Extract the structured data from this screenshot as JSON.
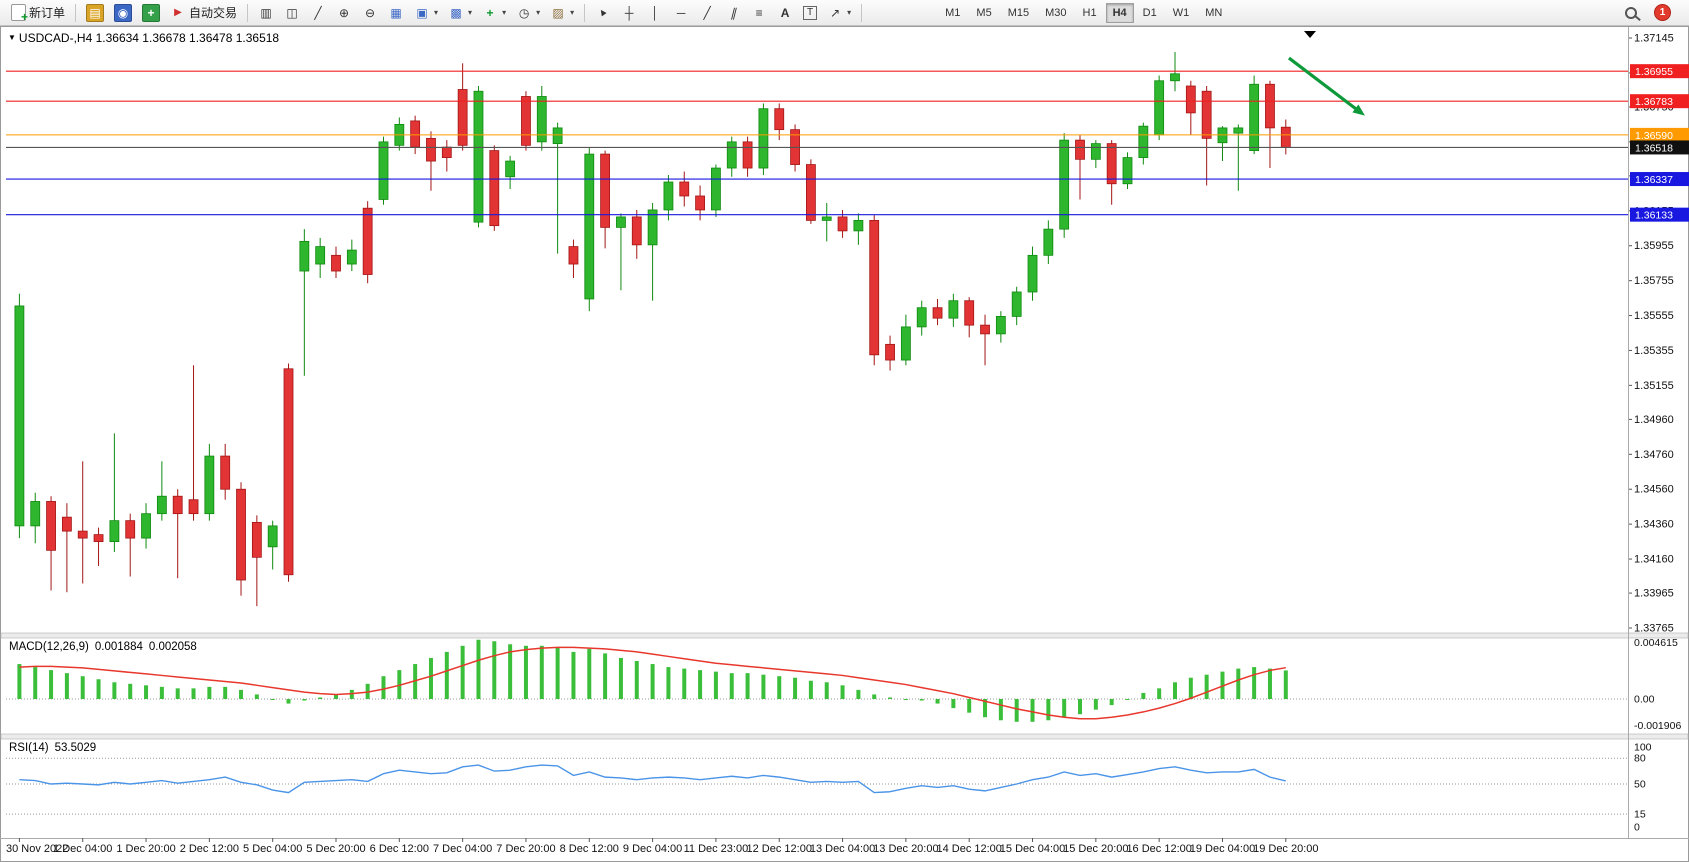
{
  "window": {
    "title_full": "USDCAD-,H4 1.36634 1.36678 1.36478 1.36518"
  },
  "colors": {
    "bull": "#2eb62e",
    "bull_dark": "#0f8a0f",
    "bear": "#e23434",
    "bear_dark": "#a31515",
    "macd_bar": "#3bbf3b",
    "macd_signal": "#e8372c",
    "rsi_line": "#4a94e8",
    "line_red": "#f02020",
    "line_orange": "#ff9b00",
    "line_blue": "#1818e0",
    "current_line": "#555555",
    "current_tag_bg": "#101010",
    "arrow_green": "#0e9a3a"
  },
  "toolbar": {
    "new_order_label": "新订单",
    "auto_trading_label": "自动交易",
    "notification_count": "1",
    "timeframes": [
      "M1",
      "M5",
      "M15",
      "M30",
      "H1",
      "H4",
      "D1",
      "W1",
      "MN"
    ],
    "active_timeframe": "H4",
    "quick_icons": [
      {
        "name": "profiles-icon",
        "glyph": "▤",
        "fg": "#ffffff",
        "bg": "#d9a427"
      },
      {
        "name": "market-watch-icon",
        "glyph": "◉",
        "fg": "#ffffff",
        "bg": "#3b67c5"
      },
      {
        "name": "navigator-icon",
        "glyph": "+",
        "fg": "#ffffff",
        "bg": "#35a04a",
        "bold": true
      }
    ],
    "chart_icons": [
      {
        "name": "bar-chart-icon",
        "glyph": "▥",
        "fg": "#333333"
      },
      {
        "name": "candlestick-icon",
        "glyph": "◫",
        "fg": "#333333"
      },
      {
        "name": "line-chart-icon",
        "glyph": "╱",
        "fg": "#333333"
      },
      {
        "name": "zoom-in-icon",
        "glyph": "⊕",
        "fg": "#333333"
      },
      {
        "name": "zoom-out-icon",
        "glyph": "⊖",
        "fg": "#333333"
      },
      {
        "name": "tile-windows-icon",
        "glyph": "▦",
        "fg": "#3b67c5"
      },
      {
        "name": "arrange-windows-icon",
        "glyph": "▣",
        "fg": "#3b67c5",
        "dropdown": true
      },
      {
        "name": "cascade-windows-icon",
        "glyph": "▩",
        "fg": "#3b67c5",
        "dropdown": true
      },
      {
        "name": "indicators-icon",
        "glyph": "+",
        "fg": "#0c9b2f",
        "bold": true,
        "dropdown": true
      },
      {
        "name": "periods-icon",
        "glyph": "◷",
        "fg": "#333333",
        "dropdown": true
      },
      {
        "name": "templates-icon",
        "glyph": "▨",
        "fg": "#8a6d3b",
        "dropdown": true
      }
    ],
    "draw_icons": [
      {
        "name": "cursor-icon",
        "glyph": "▲",
        "fg": "#333333",
        "cls": "rotc"
      },
      {
        "name": "crosshair-icon",
        "glyph": "┼",
        "fg": "#333333"
      },
      {
        "name": "vertical-line-icon",
        "glyph": "│",
        "fg": "#333333"
      },
      {
        "name": "horizontal-line-icon",
        "glyph": "─",
        "fg": "#333333"
      },
      {
        "name": "trendline-icon",
        "glyph": "╱",
        "fg": "#333333"
      },
      {
        "name": "channel-icon",
        "glyph": "∥",
        "fg": "#333333",
        "cls": "it"
      },
      {
        "name": "fibonacci-icon",
        "glyph": "≡",
        "fg": "#333333"
      },
      {
        "name": "text-icon",
        "glyph": "A",
        "fg": "#333333",
        "bold": true
      },
      {
        "name": "text-label-icon",
        "glyph": "T",
        "fg": "#333333",
        "cls": "boxT"
      },
      {
        "name": "arrows-icon",
        "glyph": "↗",
        "fg": "#333333",
        "dropdown": true
      }
    ]
  },
  "chart_data": [
    {
      "type": "candlestick",
      "symbol": "USDCAD",
      "period": "H4",
      "current_ohlc": {
        "open": 1.36634,
        "high": 1.36678,
        "low": 1.36478,
        "close": 1.36518
      },
      "y_range": {
        "max": 1.37145,
        "min": 1.33765
      },
      "candles": [
        [
          1.3435,
          1.3568,
          1.3428,
          1.3561
        ],
        [
          1.3435,
          1.3454,
          1.3425,
          1.3449
        ],
        [
          1.3449,
          1.3452,
          1.3398,
          1.3421
        ],
        [
          1.344,
          1.3448,
          1.3397,
          1.3432
        ],
        [
          1.3432,
          1.3472,
          1.3402,
          1.3428
        ],
        [
          1.343,
          1.3434,
          1.3412,
          1.3426
        ],
        [
          1.3426,
          1.3488,
          1.342,
          1.3438
        ],
        [
          1.3438,
          1.3442,
          1.3406,
          1.3428
        ],
        [
          1.3428,
          1.3448,
          1.3422,
          1.3442
        ],
        [
          1.3442,
          1.3472,
          1.3438,
          1.3452
        ],
        [
          1.3452,
          1.3456,
          1.3405,
          1.3442
        ],
        [
          1.345,
          1.3527,
          1.3438,
          1.3442
        ],
        [
          1.3442,
          1.3482,
          1.3438,
          1.3475
        ],
        [
          1.3475,
          1.3482,
          1.345,
          1.3456
        ],
        [
          1.3456,
          1.346,
          1.3395,
          1.3404
        ],
        [
          1.3437,
          1.3441,
          1.3389,
          1.3417
        ],
        [
          1.3423,
          1.3438,
          1.341,
          1.3435
        ],
        [
          1.3525,
          1.3528,
          1.3403,
          1.3407
        ],
        [
          1.3581,
          1.3605,
          1.3521,
          1.3598
        ],
        [
          1.3585,
          1.36,
          1.3577,
          1.3595
        ],
        [
          1.359,
          1.3595,
          1.3577,
          1.3581
        ],
        [
          1.3585,
          1.3599,
          1.3581,
          1.3593
        ],
        [
          1.3617,
          1.3621,
          1.3574,
          1.3579
        ],
        [
          1.3622,
          1.3658,
          1.3619,
          1.3655
        ],
        [
          1.3653,
          1.3669,
          1.365,
          1.3665
        ],
        [
          1.3667,
          1.367,
          1.3648,
          1.3652
        ],
        [
          1.3657,
          1.3661,
          1.3627,
          1.3644
        ],
        [
          1.3652,
          1.3656,
          1.3638,
          1.3646
        ],
        [
          1.3685,
          1.37,
          1.365,
          1.3653
        ],
        [
          1.3609,
          1.3687,
          1.3606,
          1.3684
        ],
        [
          1.365,
          1.3653,
          1.3604,
          1.3607
        ],
        [
          1.3635,
          1.3647,
          1.3628,
          1.3644
        ],
        [
          1.3681,
          1.3684,
          1.365,
          1.3653
        ],
        [
          1.3655,
          1.3687,
          1.365,
          1.3681
        ],
        [
          1.3654,
          1.3666,
          1.3591,
          1.3663
        ],
        [
          1.3595,
          1.3599,
          1.3577,
          1.3585
        ],
        [
          1.3565,
          1.3652,
          1.3558,
          1.3648
        ],
        [
          1.3648,
          1.365,
          1.3594,
          1.3606
        ],
        [
          1.3606,
          1.3614,
          1.357,
          1.3612
        ],
        [
          1.3612,
          1.3616,
          1.3588,
          1.3596
        ],
        [
          1.3596,
          1.362,
          1.3564,
          1.3616
        ],
        [
          1.3616,
          1.3636,
          1.361,
          1.3632
        ],
        [
          1.3632,
          1.3638,
          1.3618,
          1.3624
        ],
        [
          1.3624,
          1.363,
          1.361,
          1.3616
        ],
        [
          1.3616,
          1.3642,
          1.3612,
          1.364
        ],
        [
          1.364,
          1.3658,
          1.3635,
          1.3655
        ],
        [
          1.3655,
          1.3658,
          1.3635,
          1.364
        ],
        [
          1.364,
          1.3677,
          1.3636,
          1.3674
        ],
        [
          1.3674,
          1.3677,
          1.3656,
          1.3662
        ],
        [
          1.3662,
          1.3665,
          1.3638,
          1.3642
        ],
        [
          1.3642,
          1.3645,
          1.3608,
          1.361
        ],
        [
          1.361,
          1.362,
          1.3598,
          1.3612
        ],
        [
          1.3612,
          1.3616,
          1.36,
          1.3604
        ],
        [
          1.3604,
          1.3614,
          1.3596,
          1.361
        ],
        [
          1.361,
          1.3613,
          1.3527,
          1.3533
        ],
        [
          1.3539,
          1.3544,
          1.3524,
          1.353
        ],
        [
          1.353,
          1.3556,
          1.3527,
          1.3549
        ],
        [
          1.3549,
          1.3564,
          1.3544,
          1.356
        ],
        [
          1.356,
          1.3565,
          1.355,
          1.3554
        ],
        [
          1.3554,
          1.3568,
          1.3549,
          1.3564
        ],
        [
          1.3564,
          1.3566,
          1.3543,
          1.355
        ],
        [
          1.355,
          1.3556,
          1.3527,
          1.3545
        ],
        [
          1.3545,
          1.3558,
          1.354,
          1.3555
        ],
        [
          1.3555,
          1.3572,
          1.355,
          1.3569
        ],
        [
          1.3569,
          1.3595,
          1.3564,
          1.359
        ],
        [
          1.359,
          1.361,
          1.3585,
          1.3605
        ],
        [
          1.3605,
          1.366,
          1.36,
          1.3656
        ],
        [
          1.3656,
          1.3659,
          1.3622,
          1.3645
        ],
        [
          1.3645,
          1.3656,
          1.364,
          1.3654
        ],
        [
          1.3654,
          1.3656,
          1.3619,
          1.3631
        ],
        [
          1.3631,
          1.3649,
          1.3628,
          1.3646
        ],
        [
          1.3646,
          1.3666,
          1.3642,
          1.3664
        ],
        [
          1.3659,
          1.3693,
          1.3656,
          1.369
        ],
        [
          1.369,
          1.37065,
          1.3684,
          1.3694
        ],
        [
          1.3687,
          1.369,
          1.3659,
          1.36716
        ],
        [
          1.3684,
          1.3687,
          1.363,
          1.3657
        ],
        [
          1.36545,
          1.3664,
          1.3644,
          1.3663
        ],
        [
          1.366,
          1.3665,
          1.3627,
          1.3663
        ],
        [
          1.365,
          1.3693,
          1.3648,
          1.3688
        ],
        [
          1.3688,
          1.369,
          1.364,
          1.3663
        ],
        [
          1.36634,
          1.36678,
          1.36478,
          1.36518
        ]
      ],
      "y_axis_labels": [
        "1.37145",
        "1.36945",
        "1.36750",
        "1.36550",
        "1.36355",
        "1.36155",
        "1.35955",
        "1.35755",
        "1.35555",
        "1.35355",
        "1.35155",
        "1.34960",
        "1.34760",
        "1.34560",
        "1.34360",
        "1.34160",
        "1.33965",
        "1.33765"
      ],
      "x_axis_labels": [
        "30 Nov 2022",
        "1 Dec 04:00",
        "1 Dec 20:00",
        "2 Dec 12:00",
        "5 Dec 04:00",
        "5 Dec 20:00",
        "6 Dec 12:00",
        "7 Dec 04:00",
        "7 Dec 20:00",
        "8 Dec 12:00",
        "9 Dec 04:00",
        "11 Dec 23:00",
        "12 Dec 12:00",
        "13 Dec 04:00",
        "13 Dec 20:00",
        "14 Dec 12:00",
        "15 Dec 04:00",
        "15 Dec 20:00",
        "16 Dec 12:00",
        "19 Dec 04:00",
        "19 Dec 20:00"
      ],
      "hlines": [
        {
          "value": "1.36955",
          "line_color": "#f02020",
          "bg": "#f02020"
        },
        {
          "value": "1.36783",
          "line_color": "#f02020",
          "bg": "#f02020"
        },
        {
          "value": "1.36590",
          "line_color": "#ff9b00",
          "bg": "#ff9b00"
        },
        {
          "value": "1.36518",
          "line_color": "#555555",
          "bg": "#101010",
          "current": true
        },
        {
          "value": "1.36337",
          "line_color": "#1818e0",
          "bg": "#1818e0"
        },
        {
          "value": "1.36133",
          "line_color": "#1818e0",
          "bg": "#1818e0"
        }
      ],
      "annotation_arrow": {
        "from_bar": 80.2,
        "from_price": 1.3703,
        "to_bar": 85.0,
        "to_price": 1.367,
        "color": "#0e9a3a"
      }
    },
    {
      "type": "macd",
      "label": "MACD(12,26,9)",
      "main_value": "0.001884",
      "signal_value": "0.002058",
      "values_scale": 0.0001,
      "axis_labels": [
        "0.004615",
        "0.00",
        "-0.001906"
      ],
      "histogram": [
        23,
        21,
        19,
        17,
        15,
        13,
        11,
        10,
        9,
        8,
        7,
        7,
        8,
        8,
        6,
        3,
        0,
        -3,
        -1,
        1,
        3,
        6,
        10,
        15,
        19,
        23,
        27,
        31,
        35,
        39,
        38,
        36,
        35,
        35,
        34,
        31,
        33,
        30,
        27,
        25,
        23,
        21,
        20,
        19,
        18,
        17,
        17,
        16,
        15,
        14,
        12,
        11,
        9,
        6,
        3,
        1,
        0,
        -1,
        -3,
        -6,
        -9,
        -12,
        -14,
        -15,
        -15,
        -14,
        -12,
        -10,
        -7,
        -4,
        0,
        4,
        7,
        11,
        14,
        16,
        18,
        20,
        21,
        20,
        18.8
      ],
      "signal": [
        21,
        21.5,
        21.5,
        21,
        20.5,
        19.5,
        18.5,
        17.5,
        16.5,
        15.5,
        14.5,
        13.5,
        12.5,
        11.5,
        10.5,
        9,
        7.5,
        6,
        4.5,
        3.5,
        3,
        3.5,
        4.5,
        6.5,
        9,
        12,
        15,
        18.5,
        22,
        25.5,
        28.5,
        31,
        32.5,
        33.5,
        34,
        34,
        33.5,
        33,
        32,
        31,
        29.5,
        28,
        26.5,
        25,
        23.5,
        22.5,
        21.5,
        20.5,
        19.5,
        18.5,
        17.5,
        16.5,
        15.5,
        14,
        12.5,
        11,
        9.5,
        7.5,
        5.5,
        3.5,
        1,
        -1.5,
        -4,
        -6.5,
        -8.5,
        -10.5,
        -12,
        -13,
        -13,
        -12,
        -10.5,
        -8.5,
        -6,
        -3,
        0.5,
        4.5,
        8.5,
        12.5,
        16,
        18.8,
        20.6
      ]
    },
    {
      "type": "rsi",
      "label": "RSI(14)",
      "value": "53.5029",
      "levels": [
        80,
        50,
        15
      ],
      "axis_labels": [
        "100",
        "80",
        "50",
        "15",
        "0"
      ],
      "values": [
        55,
        54,
        50,
        51,
        50,
        49,
        52,
        50,
        52,
        54,
        51,
        53,
        55,
        58,
        52,
        49,
        43,
        40,
        52,
        53,
        54,
        55,
        53,
        62,
        66,
        64,
        62,
        63,
        70,
        72,
        65,
        66,
        70,
        72,
        71,
        60,
        64,
        58,
        57,
        55,
        57,
        58,
        57,
        55,
        57,
        59,
        57,
        60,
        58,
        55,
        52,
        53,
        52,
        53,
        40,
        41,
        45,
        48,
        46,
        48,
        44,
        42,
        46,
        50,
        55,
        58,
        64,
        60,
        62,
        58,
        61,
        64,
        68,
        70,
        66,
        63,
        64,
        64,
        67,
        58,
        53.5
      ]
    }
  ]
}
